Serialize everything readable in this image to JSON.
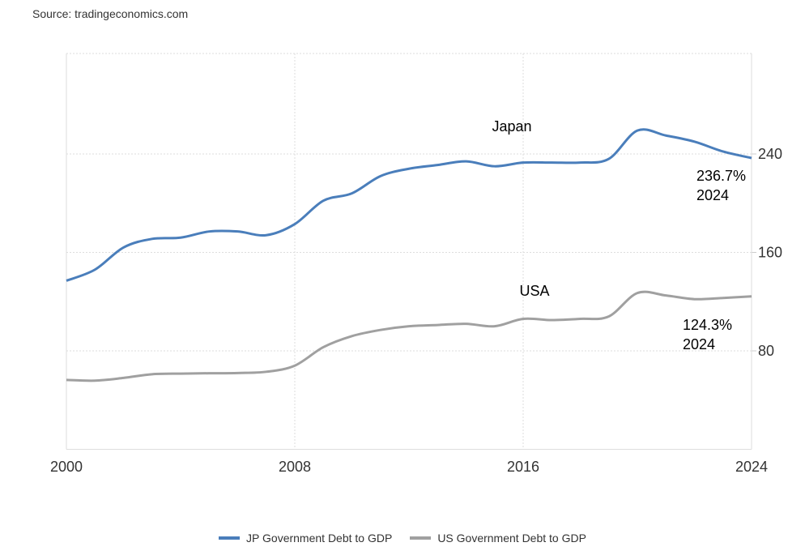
{
  "source": "Source: tradingeconomics.com",
  "chart_data": {
    "type": "line",
    "title": "",
    "xlabel": "",
    "ylabel": "",
    "xlim": [
      2000,
      2024
    ],
    "ylim": [
      0,
      320
    ],
    "x_ticks": [
      "2000",
      "2008",
      "2016",
      "2024"
    ],
    "y_ticks": [
      "80",
      "160",
      "240"
    ],
    "y_axis_side": "right",
    "grid": true,
    "legend_placement": "bottom-center",
    "x": [
      2000,
      2001,
      2002,
      2003,
      2004,
      2005,
      2006,
      2007,
      2008,
      2009,
      2010,
      2011,
      2012,
      2013,
      2014,
      2015,
      2016,
      2017,
      2018,
      2019,
      2020,
      2021,
      2022,
      2023,
      2024
    ],
    "series": [
      {
        "name": "JP Government Debt to GDP",
        "label": "Japan",
        "color": "#4a7ebb",
        "values": [
          137,
          146,
          164,
          171,
          172,
          177,
          177,
          174,
          183,
          202,
          208,
          222,
          228,
          231,
          234,
          230,
          233,
          233,
          233,
          236,
          259,
          255,
          250,
          242,
          236.7
        ],
        "end_annotation": {
          "value": "236.7%",
          "year": "2024"
        }
      },
      {
        "name": "US Government Debt to GDP",
        "label": "USA",
        "color": "#a0a0a0",
        "values": [
          56.4,
          55.8,
          58,
          61,
          61.5,
          61.8,
          62,
          63,
          68,
          83,
          92,
          97,
          100,
          101,
          102,
          100,
          106,
          105,
          106,
          108,
          127,
          125,
          122,
          123,
          124.3
        ],
        "end_annotation": {
          "value": "124.3%",
          "year": "2024"
        }
      }
    ]
  }
}
